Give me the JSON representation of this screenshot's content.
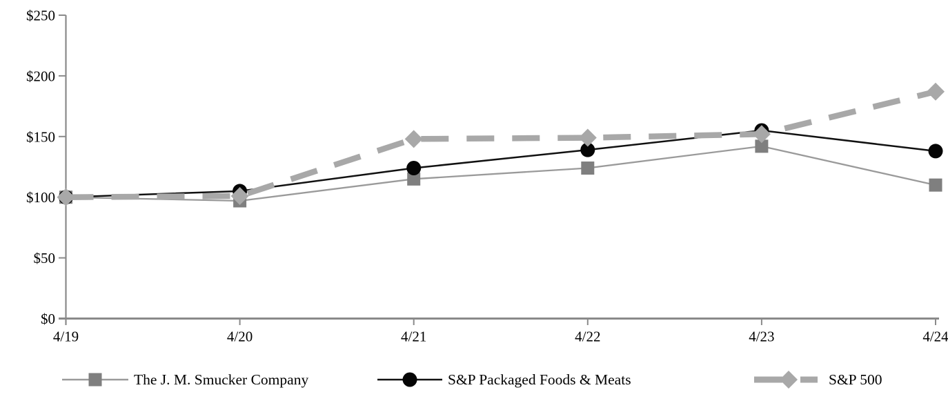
{
  "chart_data": {
    "type": "line",
    "title": "",
    "xlabel": "",
    "ylabel": "",
    "x_categories": [
      "4/19",
      "4/20",
      "4/21",
      "4/22",
      "4/23",
      "4/24"
    ],
    "y_ticks": [
      "$0",
      "$50",
      "$100",
      "$150",
      "$200",
      "$250"
    ],
    "ylim": [
      0,
      250
    ],
    "grid": false,
    "legend_position": "bottom",
    "axis_color": "#8a8a8a",
    "series": [
      {
        "name": "The J. M. Smucker Company",
        "values": [
          100,
          97,
          115,
          124,
          142,
          110
        ],
        "line_color": "#9a9a9a",
        "marker_color": "#7f7f7f",
        "marker": "square",
        "line_style": "solid",
        "line_width": 2.3
      },
      {
        "name": "S&P Packaged Foods & Meats",
        "values": [
          100,
          105,
          124,
          139,
          155,
          138
        ],
        "line_color": "#111111",
        "marker_color": "#050505",
        "marker": "circle",
        "line_style": "solid",
        "line_width": 2.5
      },
      {
        "name": "S&P 500",
        "values": [
          100,
          101,
          148,
          149,
          152,
          187
        ],
        "line_color": "#a8a8a8",
        "marker_color": "#a8a8a8",
        "marker": "diamond",
        "line_style": "dashed",
        "line_width": 8.5
      }
    ]
  }
}
